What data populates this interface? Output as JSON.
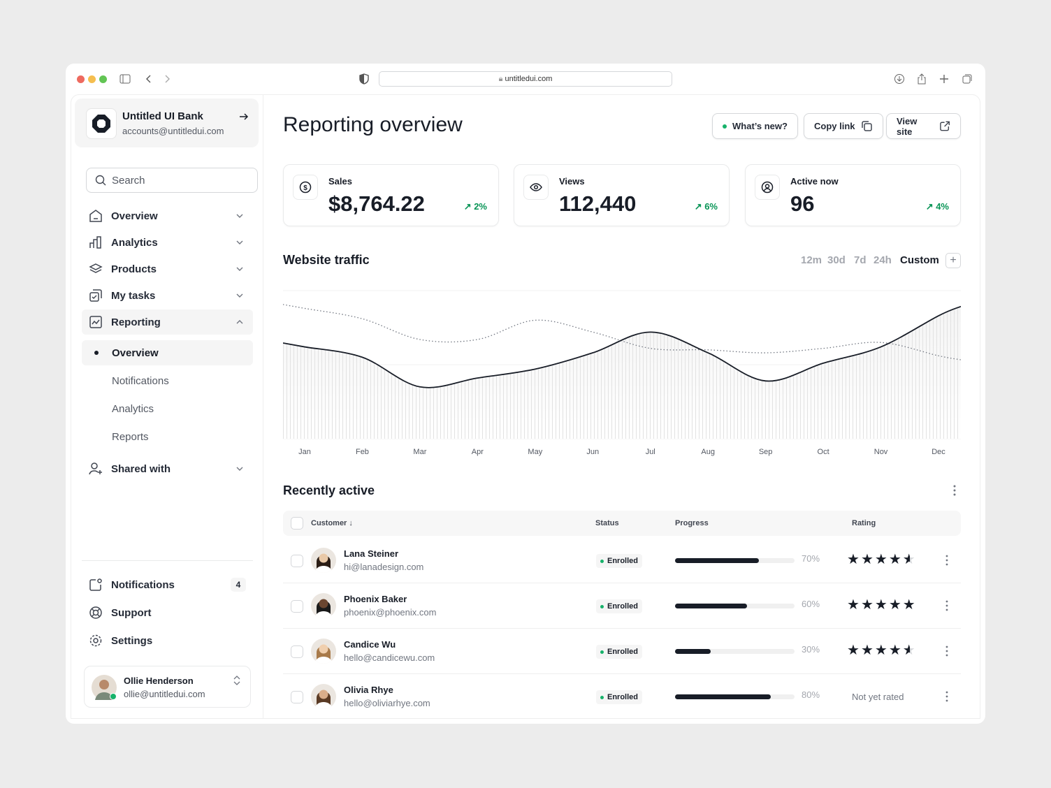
{
  "browser": {
    "url": "untitledui.com"
  },
  "account": {
    "name": "Untitled UI Bank",
    "email": "accounts@untitledui.com"
  },
  "search": {
    "placeholder": "Search"
  },
  "nav": [
    {
      "label": "Overview",
      "icon": "home-icon"
    },
    {
      "label": "Analytics",
      "icon": "bar-chart-icon"
    },
    {
      "label": "Products",
      "icon": "layers-icon"
    },
    {
      "label": "My tasks",
      "icon": "check-square-icon"
    },
    {
      "label": "Reporting",
      "icon": "line-chart-icon",
      "expanded": true
    },
    {
      "label": "Shared with",
      "icon": "user-plus-icon"
    }
  ],
  "reporting_sub": [
    {
      "label": "Overview",
      "active": true
    },
    {
      "label": "Notifications"
    },
    {
      "label": "Analytics"
    },
    {
      "label": "Reports"
    }
  ],
  "footer_nav": [
    {
      "label": "Notifications",
      "badge": "4"
    },
    {
      "label": "Support"
    },
    {
      "label": "Settings"
    }
  ],
  "user": {
    "name": "Ollie Henderson",
    "email": "ollie@untitledui.com",
    "online": true
  },
  "header": {
    "title": "Reporting overview",
    "whats_new": "What’s new?",
    "copy_link": "Copy link",
    "view_site": "View site"
  },
  "kpis": [
    {
      "label": "Sales",
      "value": "$8,764.22",
      "delta": "2%",
      "icon": "dollar-icon"
    },
    {
      "label": "Views",
      "value": "112,440",
      "delta": "6%",
      "icon": "eye-icon"
    },
    {
      "label": "Active now",
      "value": "96",
      "delta": "4%",
      "icon": "user-circle-icon"
    }
  ],
  "traffic": {
    "title": "Website traffic",
    "ranges": [
      "12m",
      "30d",
      "7d",
      "24h",
      "Custom"
    ],
    "selected_range": "Custom"
  },
  "chart_data": {
    "type": "line",
    "categories": [
      "Jan",
      "Feb",
      "Mar",
      "Apr",
      "May",
      "Jun",
      "Jul",
      "Aug",
      "Sep",
      "Oct",
      "Nov",
      "Dec"
    ],
    "series": [
      {
        "style": "solid-area",
        "values": [
          62,
          55,
          35,
          41,
          47,
          58,
          72,
          58,
          39,
          51,
          62,
          83
        ]
      },
      {
        "style": "dotted",
        "values": [
          88,
          81,
          67,
          67,
          80,
          72,
          61,
          60,
          58,
          61,
          65,
          56
        ]
      }
    ],
    "grid": true,
    "yaxis": "hidden",
    "colors": {
      "line": "#181d27",
      "dotted": "#717680"
    }
  },
  "recent": {
    "title": "Recently active",
    "columns": [
      "Customer",
      "Status",
      "Progress",
      "Rating"
    ],
    "rows": [
      {
        "name": "Lana Steiner",
        "email": "hi@lanadesign.com",
        "status": "Enrolled",
        "progress": 70,
        "progress_label": "70%",
        "rating": 4.5
      },
      {
        "name": "Phoenix Baker",
        "email": "phoenix@phoenix.com",
        "status": "Enrolled",
        "progress": 60,
        "progress_label": "60%",
        "rating": 5
      },
      {
        "name": "Candice Wu",
        "email": "hello@candicewu.com",
        "status": "Enrolled",
        "progress": 30,
        "progress_label": "30%",
        "rating": 4.5
      },
      {
        "name": "Olivia Rhye",
        "email": "hello@oliviarhye.com",
        "status": "Enrolled",
        "progress": 80,
        "progress_label": "80%",
        "rating": null,
        "rating_text": "Not yet rated"
      }
    ]
  },
  "colors": {
    "accent_green": "#079455",
    "dot_green": "#17b26a",
    "text": "#181d27"
  }
}
